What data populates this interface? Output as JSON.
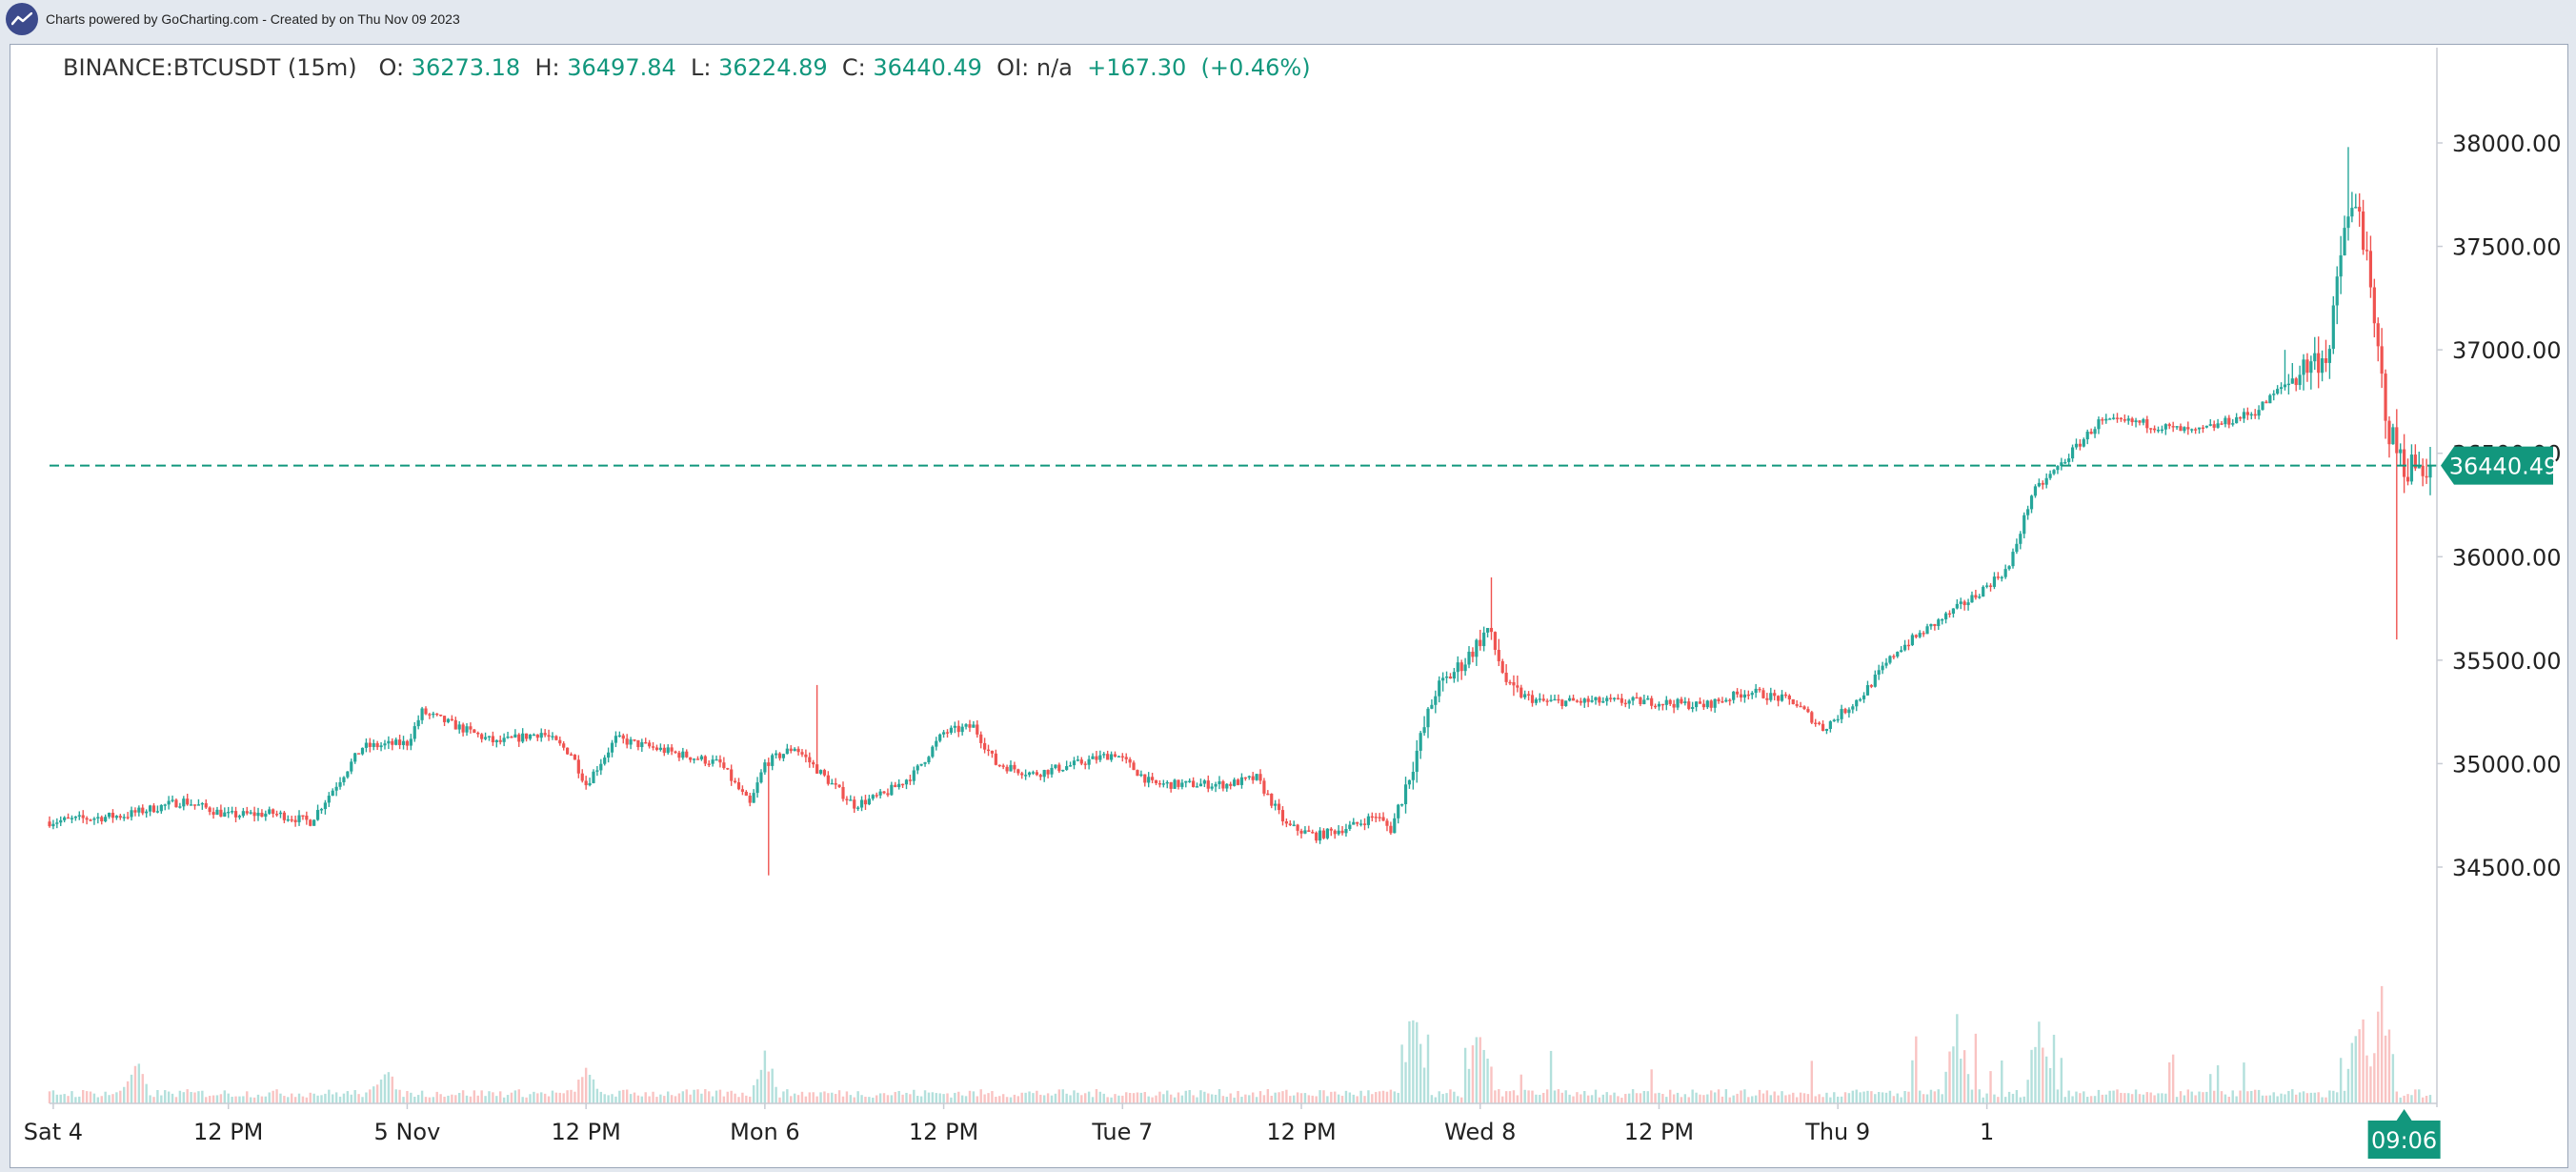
{
  "topbar": {
    "credit_prefix": "Charts powered by GoCharting.com - Created by",
    "credit_date": "on Thu Nov 09 2023"
  },
  "legend": {
    "symbol": "BINANCE:BTCUSDT (15m)",
    "o_label": "O:",
    "o_value": "36273.18",
    "h_label": "H:",
    "h_value": "36497.84",
    "l_label": "L:",
    "l_value": "36224.89",
    "c_label": "C:",
    "c_value": "36440.49",
    "oi_label": "OI:",
    "oi_value": "n/a",
    "change": "+167.30",
    "change_pct": "(+0.46%)"
  },
  "colors": {
    "up": "#26a69a",
    "down": "#ef5350",
    "price_line": "#12977d",
    "axis_text": "#222222"
  },
  "chart_data": {
    "type": "candlestick",
    "y_axis": {
      "ticks": [
        "38000.00",
        "37500.00",
        "37000.00",
        "36500.00",
        "36000.00",
        "35500.00",
        "35000.00",
        "34500.00"
      ],
      "ylim": [
        34050,
        38200
      ],
      "side": "right"
    },
    "x_axis": {
      "labels": [
        "Sat 4",
        "12 PM",
        "5 Nov",
        "12 PM",
        "Mon 6",
        "12 PM",
        "Tue 7",
        "12 PM",
        "Wed 8",
        "12 PM",
        "Thu 9",
        "1"
      ],
      "label_index": [
        1,
        48,
        96,
        144,
        192,
        240,
        288,
        336,
        384,
        432,
        480,
        520
      ]
    },
    "last_price": 36440.49,
    "last_price_label": "36440.49",
    "last_time_label": "09:06",
    "ohlc_close_keypoints": [
      [
        0,
        34720
      ],
      [
        20,
        34750
      ],
      [
        36,
        34820
      ],
      [
        48,
        34750
      ],
      [
        60,
        34760
      ],
      [
        70,
        34720
      ],
      [
        84,
        35080
      ],
      [
        96,
        35100
      ],
      [
        100,
        35250
      ],
      [
        120,
        35100
      ],
      [
        132,
        35150
      ],
      [
        140,
        35050
      ],
      [
        144,
        34900
      ],
      [
        152,
        35120
      ],
      [
        168,
        35050
      ],
      [
        180,
        35000
      ],
      [
        184,
        34900
      ],
      [
        188,
        34800
      ],
      [
        192,
        35000
      ],
      [
        200,
        35080
      ],
      [
        210,
        34900
      ],
      [
        216,
        34800
      ],
      [
        224,
        34850
      ],
      [
        232,
        34950
      ],
      [
        240,
        35150
      ],
      [
        248,
        35180
      ],
      [
        254,
        35000
      ],
      [
        264,
        34950
      ],
      [
        276,
        35000
      ],
      [
        286,
        35050
      ],
      [
        296,
        34900
      ],
      [
        316,
        34900
      ],
      [
        324,
        34930
      ],
      [
        332,
        34700
      ],
      [
        340,
        34650
      ],
      [
        350,
        34700
      ],
      [
        356,
        34750
      ],
      [
        360,
        34680
      ],
      [
        366,
        35000
      ],
      [
        372,
        35350
      ],
      [
        380,
        35500
      ],
      [
        386,
        35650
      ],
      [
        392,
        35350
      ],
      [
        400,
        35300
      ],
      [
        412,
        35300
      ],
      [
        430,
        35300
      ],
      [
        444,
        35280
      ],
      [
        456,
        35350
      ],
      [
        468,
        35300
      ],
      [
        476,
        35170
      ],
      [
        486,
        35320
      ],
      [
        496,
        35550
      ],
      [
        508,
        35700
      ],
      [
        516,
        35800
      ],
      [
        526,
        35950
      ],
      [
        532,
        36300
      ],
      [
        540,
        36450
      ],
      [
        550,
        36650
      ],
      [
        560,
        36650
      ],
      [
        576,
        36600
      ],
      [
        592,
        36700
      ],
      [
        604,
        36900
      ],
      [
        612,
        37000
      ],
      [
        616,
        37600
      ],
      [
        620,
        37700
      ],
      [
        624,
        37100
      ],
      [
        628,
        36600
      ],
      [
        632,
        36440
      ]
    ],
    "volume_relative_peaks": [
      [
        23,
        0.35
      ],
      [
        90,
        0.32
      ],
      [
        144,
        0.3
      ],
      [
        192,
        0.42
      ],
      [
        366,
        0.72
      ],
      [
        384,
        0.68
      ],
      [
        512,
        0.65
      ],
      [
        534,
        0.68
      ],
      [
        620,
        0.85
      ],
      [
        626,
        0.88
      ]
    ]
  }
}
